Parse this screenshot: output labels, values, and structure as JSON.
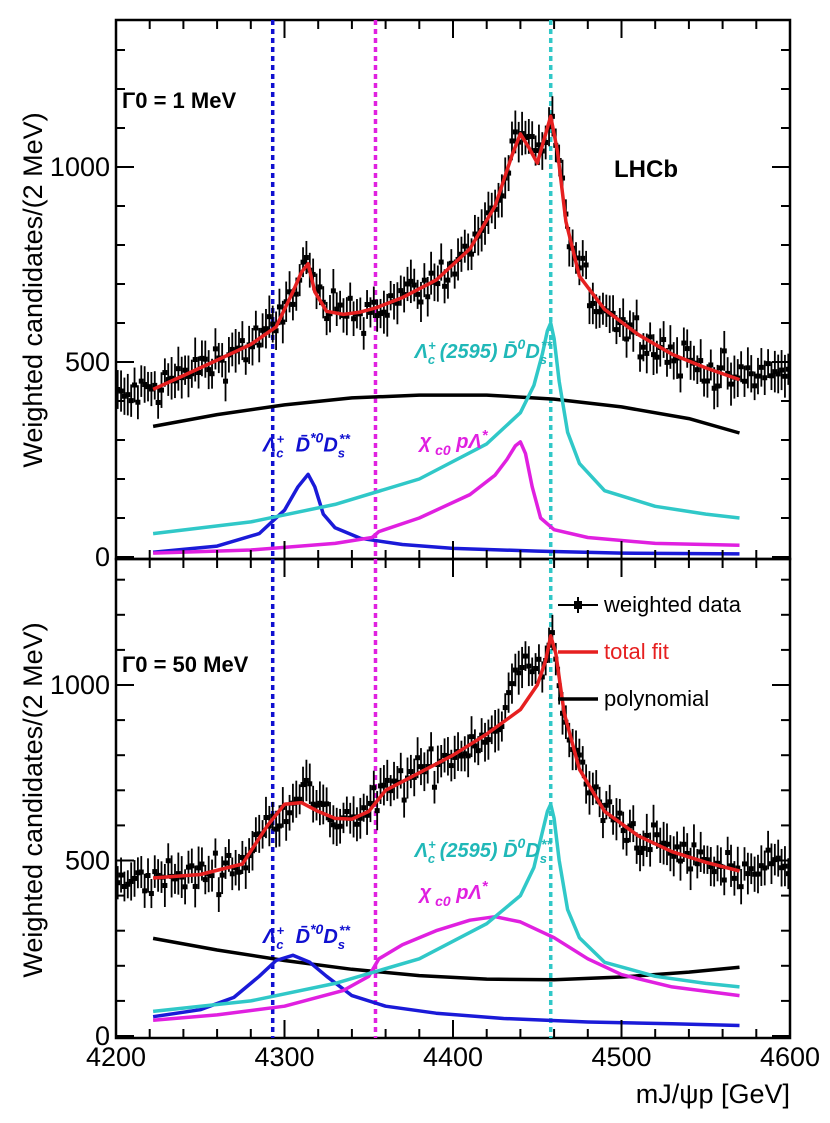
{
  "chart_data": [
    {
      "type": "line",
      "panel": "top",
      "annotation": "Γ0 = 1 MeV",
      "experiment_label": "LHCb",
      "ylabel": "Weighted candidates/(2 MeV)",
      "xlim": [
        4200,
        4600
      ],
      "ylim": [
        0,
        1350
      ],
      "yticks": [
        0,
        500,
        1000
      ],
      "vertical_lines": [
        {
          "x": 4293,
          "color": "#1010d0"
        },
        {
          "x": 4354,
          "color": "#e020e0"
        },
        {
          "x": 4458,
          "color": "#30c8c8"
        }
      ],
      "component_labels": [
        {
          "text": "Λc⁺ D̄*⁰Ds**",
          "color": "#1010d0",
          "x": 4305,
          "y": 270
        },
        {
          "text": "χc0 pΛ*",
          "color": "#e020e0",
          "x": 4398,
          "y": 280
        },
        {
          "text": "Λc⁺(2595) D̄⁰Ds**",
          "color": "#20b8b8",
          "x": 4395,
          "y": 510
        }
      ],
      "series": [
        {
          "name": "total fit",
          "color": "#e62020",
          "x": [
            4222,
            4240,
            4260,
            4280,
            4295,
            4305,
            4310,
            4314,
            4318,
            4325,
            4335,
            4345,
            4355,
            4370,
            4390,
            4410,
            4425,
            4435,
            4440,
            4445,
            4450,
            4454,
            4458,
            4462,
            4467,
            4475,
            4490,
            4510,
            4530,
            4550,
            4570
          ],
          "y": [
            430,
            465,
            505,
            545,
            590,
            680,
            730,
            752,
            680,
            630,
            622,
            628,
            640,
            665,
            710,
            790,
            900,
            1030,
            1085,
            1050,
            1010,
            1070,
            1130,
            1040,
            860,
            720,
            635,
            570,
            520,
            485,
            455
          ]
        },
        {
          "name": "polynomial",
          "color": "#000000",
          "x": [
            4222,
            4260,
            4300,
            4340,
            4380,
            4420,
            4460,
            4500,
            4540,
            4570
          ],
          "y": [
            335,
            365,
            390,
            408,
            415,
            415,
            405,
            385,
            355,
            318
          ]
        },
        {
          "name": "Λc⁺ D̄*⁰Ds**",
          "color": "#1a1ad8",
          "x": [
            4222,
            4260,
            4285,
            4300,
            4308,
            4314,
            4318,
            4323,
            4330,
            4345,
            4370,
            4400,
            4450,
            4500,
            4570
          ],
          "y": [
            12,
            28,
            60,
            120,
            180,
            212,
            180,
            110,
            75,
            48,
            32,
            22,
            15,
            10,
            8
          ]
        },
        {
          "name": "χc0 pΛ*",
          "color": "#e020e0",
          "x": [
            4222,
            4280,
            4330,
            4352,
            4356,
            4380,
            4410,
            4425,
            4432,
            4437,
            4440,
            4443,
            4447,
            4452,
            4460,
            4480,
            4520,
            4570
          ],
          "y": [
            10,
            18,
            35,
            50,
            65,
            100,
            160,
            210,
            250,
            285,
            295,
            265,
            180,
            100,
            70,
            50,
            35,
            30
          ]
        },
        {
          "name": "Λc⁺(2595) D̄⁰Ds**",
          "color": "#30c8c8",
          "x": [
            4222,
            4280,
            4330,
            4380,
            4420,
            4440,
            4448,
            4453,
            4456,
            4458,
            4460,
            4463,
            4468,
            4475,
            4490,
            4520,
            4550,
            4570
          ],
          "y": [
            60,
            90,
            135,
            200,
            290,
            370,
            440,
            520,
            580,
            600,
            560,
            450,
            320,
            240,
            170,
            130,
            110,
            100
          ]
        }
      ]
    },
    {
      "type": "line",
      "panel": "bottom",
      "annotation": "Γ0 = 50 MeV",
      "ylabel": "Weighted candidates/(2 MeV)",
      "xlabel": "mJ/ψp [GeV]",
      "xlim": [
        4200,
        4600
      ],
      "ylim": [
        0,
        1350
      ],
      "xticks": [
        4200,
        4300,
        4400,
        4500,
        4600
      ],
      "yticks": [
        0,
        500,
        1000
      ],
      "vertical_lines": [
        {
          "x": 4293,
          "color": "#1010d0"
        },
        {
          "x": 4354,
          "color": "#e020e0"
        },
        {
          "x": 4458,
          "color": "#30c8c8"
        }
      ],
      "legend": {
        "position": "top-right",
        "entries": [
          {
            "label": "weighted data",
            "color": "#000000",
            "marker": "square"
          },
          {
            "label": "total fit",
            "color": "#e62020",
            "marker": "line"
          },
          {
            "label": "polynomial",
            "color": "#000000",
            "marker": "line"
          }
        ]
      },
      "component_labels": [
        {
          "text": "Λc⁺ D̄*⁰Ds**",
          "color": "#1010d0",
          "x": 4305,
          "y": 265
        },
        {
          "text": "χc0 pΛ*",
          "color": "#e020e0",
          "x": 4398,
          "y": 390
        },
        {
          "text": "Λc⁺(2595) D̄⁰Ds**",
          "color": "#20b8b8",
          "x": 4395,
          "y": 510
        }
      ],
      "series": [
        {
          "name": "total fit",
          "color": "#e62020",
          "x": [
            4222,
            4250,
            4275,
            4290,
            4300,
            4310,
            4320,
            4330,
            4340,
            4350,
            4360,
            4380,
            4400,
            4420,
            4440,
            4450,
            4455,
            4458,
            4461,
            4466,
            4475,
            4490,
            4510,
            4530,
            4550,
            4570
          ],
          "y": [
            450,
            460,
            490,
            600,
            660,
            665,
            640,
            620,
            618,
            640,
            700,
            750,
            800,
            860,
            930,
            1000,
            1070,
            1140,
            1090,
            920,
            760,
            640,
            570,
            525,
            495,
            470
          ]
        },
        {
          "name": "polynomial",
          "color": "#000000",
          "x": [
            4222,
            4260,
            4300,
            4340,
            4380,
            4420,
            4460,
            4500,
            4540,
            4570
          ],
          "y": [
            278,
            245,
            215,
            190,
            172,
            162,
            160,
            168,
            182,
            196
          ]
        },
        {
          "name": "Λc⁺ D̄*⁰Ds**",
          "color": "#1a1ad8",
          "x": [
            4222,
            4250,
            4270,
            4285,
            4295,
            4305,
            4315,
            4325,
            4340,
            4360,
            4390,
            4430,
            4480,
            4530,
            4570
          ],
          "y": [
            55,
            75,
            110,
            170,
            215,
            230,
            210,
            170,
            115,
            85,
            65,
            50,
            40,
            35,
            30
          ]
        },
        {
          "name": "χc0 pΛ*",
          "color": "#e020e0",
          "x": [
            4222,
            4260,
            4300,
            4335,
            4350,
            4356,
            4370,
            4390,
            4410,
            4425,
            4440,
            4460,
            4480,
            4500,
            4530,
            4570
          ],
          "y": [
            45,
            60,
            85,
            130,
            170,
            220,
            260,
            300,
            330,
            340,
            325,
            280,
            220,
            175,
            140,
            115
          ]
        },
        {
          "name": "Λc⁺(2595) D̄⁰Ds**",
          "color": "#30c8c8",
          "x": [
            4222,
            4280,
            4330,
            4380,
            4420,
            4440,
            4448,
            4453,
            4456,
            4458,
            4460,
            4463,
            4468,
            4475,
            4490,
            4520,
            4550,
            4570
          ],
          "y": [
            70,
            100,
            150,
            220,
            320,
            400,
            480,
            580,
            640,
            660,
            620,
            500,
            360,
            280,
            210,
            170,
            150,
            140
          ]
        }
      ]
    }
  ]
}
